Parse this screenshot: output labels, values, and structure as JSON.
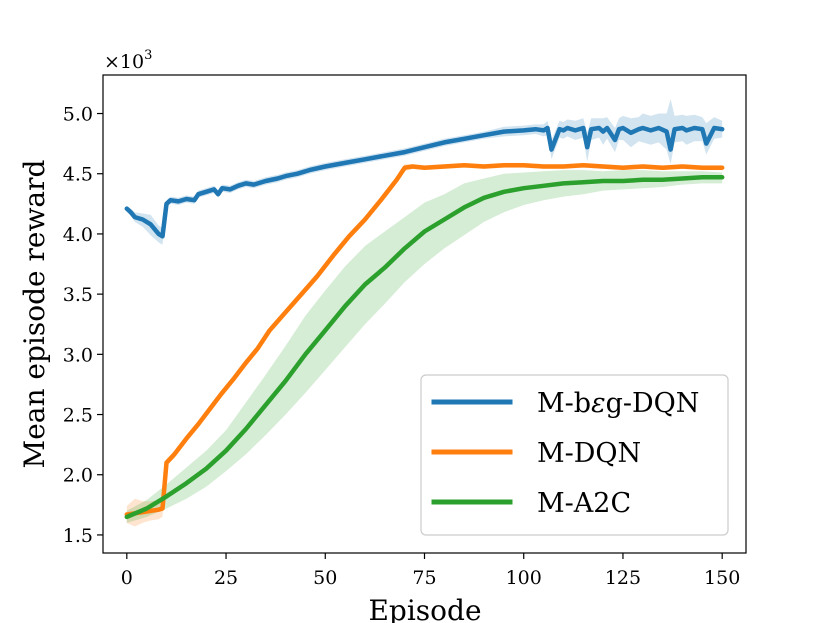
{
  "chart_data": {
    "type": "line",
    "xlabel": "Episode",
    "ylabel": "Mean episode reward",
    "y_multiplier": "×10",
    "y_multiplier_exp": "3",
    "xlim": [
      -6,
      156
    ],
    "ylim": [
      1.35,
      5.32
    ],
    "xticks": [
      0,
      25,
      50,
      75,
      100,
      125,
      150
    ],
    "xtick_labels": [
      "0",
      "25",
      "50",
      "75",
      "100",
      "125",
      "150"
    ],
    "yticks": [
      1.5,
      2.0,
      2.5,
      3.0,
      3.5,
      4.0,
      4.5,
      5.0
    ],
    "ytick_labels": [
      "1.5",
      "2.0",
      "2.5",
      "3.0",
      "3.5",
      "4.0",
      "4.5",
      "5.0"
    ],
    "legend_position": "lower-right",
    "series": [
      {
        "name": "M-bεg-DQN",
        "label_prefix": "M-b",
        "label_symbol": "ε",
        "label_suffix": "g-DQN",
        "color": "#1f77b4",
        "band_color": "#1f77b4",
        "band_opacity": 0.2,
        "x": [
          0,
          1,
          2,
          4,
          6,
          8,
          9,
          10,
          11,
          13,
          15,
          17,
          18,
          20,
          22,
          23,
          24,
          26,
          28,
          30,
          32,
          35,
          38,
          40,
          43,
          46,
          50,
          55,
          60,
          65,
          70,
          75,
          80,
          85,
          90,
          95,
          100,
          103,
          105,
          106,
          107,
          109,
          110,
          111,
          113,
          115,
          116,
          117,
          119,
          120,
          121,
          123,
          124,
          125,
          127,
          129,
          130,
          132,
          134,
          136,
          137,
          138,
          140,
          141,
          143,
          145,
          146,
          148,
          150
        ],
        "y": [
          4.21,
          4.18,
          4.14,
          4.12,
          4.08,
          4.0,
          3.98,
          4.25,
          4.28,
          4.27,
          4.29,
          4.28,
          4.33,
          4.35,
          4.37,
          4.33,
          4.38,
          4.37,
          4.4,
          4.42,
          4.41,
          4.44,
          4.46,
          4.48,
          4.5,
          4.53,
          4.56,
          4.59,
          4.62,
          4.65,
          4.68,
          4.72,
          4.76,
          4.79,
          4.82,
          4.85,
          4.86,
          4.87,
          4.86,
          4.88,
          4.7,
          4.87,
          4.86,
          4.88,
          4.86,
          4.88,
          4.72,
          4.87,
          4.88,
          4.85,
          4.88,
          4.78,
          4.87,
          4.88,
          4.84,
          4.87,
          4.88,
          4.86,
          4.88,
          4.85,
          4.7,
          4.87,
          4.88,
          4.86,
          4.88,
          4.87,
          4.75,
          4.88,
          4.87
        ],
        "lower": [
          4.19,
          4.15,
          4.1,
          4.06,
          3.99,
          3.93,
          3.91,
          4.22,
          4.25,
          4.24,
          4.26,
          4.25,
          4.3,
          4.32,
          4.34,
          4.3,
          4.35,
          4.34,
          4.37,
          4.39,
          4.38,
          4.41,
          4.43,
          4.45,
          4.47,
          4.5,
          4.53,
          4.56,
          4.59,
          4.62,
          4.65,
          4.69,
          4.73,
          4.76,
          4.79,
          4.81,
          4.82,
          4.83,
          4.81,
          4.82,
          4.62,
          4.8,
          4.79,
          4.81,
          4.78,
          4.8,
          4.6,
          4.78,
          4.8,
          4.74,
          4.79,
          4.68,
          4.78,
          4.78,
          4.72,
          4.77,
          4.76,
          4.74,
          4.76,
          4.7,
          4.58,
          4.76,
          4.77,
          4.74,
          4.77,
          4.77,
          4.66,
          4.79,
          4.8
        ],
        "upper": [
          4.23,
          4.21,
          4.18,
          4.17,
          4.16,
          4.07,
          4.05,
          4.28,
          4.31,
          4.3,
          4.32,
          4.31,
          4.36,
          4.38,
          4.4,
          4.36,
          4.41,
          4.4,
          4.43,
          4.45,
          4.44,
          4.47,
          4.49,
          4.51,
          4.53,
          4.56,
          4.59,
          4.62,
          4.65,
          4.68,
          4.71,
          4.75,
          4.79,
          4.82,
          4.85,
          4.89,
          4.9,
          4.91,
          4.91,
          4.94,
          4.78,
          4.94,
          4.93,
          4.95,
          4.94,
          4.96,
          4.84,
          4.96,
          4.96,
          4.96,
          4.97,
          4.88,
          4.96,
          4.98,
          4.96,
          4.97,
          5.0,
          4.98,
          5.0,
          5.0,
          5.12,
          4.98,
          4.99,
          4.98,
          4.99,
          4.97,
          4.92,
          4.97,
          4.94
        ]
      },
      {
        "name": "M-DQN",
        "color": "#ff7f0e",
        "band_color": "#ff7f0e",
        "band_opacity": 0.2,
        "x": [
          0,
          2,
          4,
          6,
          8,
          9,
          10,
          12,
          15,
          18,
          21,
          24,
          27,
          30,
          33,
          36,
          40,
          44,
          48,
          52,
          56,
          60,
          64,
          68,
          70,
          72,
          75,
          80,
          85,
          90,
          95,
          100,
          105,
          110,
          115,
          120,
          125,
          130,
          135,
          140,
          145,
          150
        ],
        "y": [
          1.67,
          1.68,
          1.69,
          1.7,
          1.71,
          1.72,
          2.1,
          2.17,
          2.3,
          2.42,
          2.55,
          2.68,
          2.8,
          2.93,
          3.05,
          3.2,
          3.35,
          3.5,
          3.65,
          3.82,
          3.98,
          4.12,
          4.28,
          4.45,
          4.55,
          4.56,
          4.55,
          4.56,
          4.57,
          4.56,
          4.57,
          4.57,
          4.56,
          4.56,
          4.57,
          4.56,
          4.55,
          4.56,
          4.55,
          4.56,
          4.55,
          4.55
        ],
        "lower": [
          1.6,
          1.57,
          1.6,
          1.62,
          1.63,
          1.65,
          2.07,
          2.14,
          2.27,
          2.39,
          2.52,
          2.65,
          2.77,
          2.9,
          3.02,
          3.17,
          3.32,
          3.47,
          3.62,
          3.79,
          3.95,
          4.09,
          4.25,
          4.42,
          4.52,
          4.54,
          4.53,
          4.54,
          4.55,
          4.54,
          4.55,
          4.55,
          4.54,
          4.54,
          4.55,
          4.54,
          4.53,
          4.54,
          4.53,
          4.54,
          4.53,
          4.53
        ],
        "upper": [
          1.74,
          1.8,
          1.78,
          1.78,
          1.79,
          1.79,
          2.13,
          2.2,
          2.33,
          2.45,
          2.58,
          2.71,
          2.83,
          2.96,
          3.08,
          3.23,
          3.38,
          3.53,
          3.68,
          3.85,
          4.01,
          4.15,
          4.31,
          4.48,
          4.58,
          4.58,
          4.57,
          4.58,
          4.59,
          4.58,
          4.59,
          4.59,
          4.58,
          4.58,
          4.59,
          4.58,
          4.57,
          4.58,
          4.57,
          4.58,
          4.57,
          4.57
        ]
      },
      {
        "name": "M-A2C",
        "color": "#2ca02c",
        "band_color": "#2ca02c",
        "band_opacity": 0.2,
        "x": [
          0,
          5,
          10,
          15,
          20,
          25,
          30,
          35,
          40,
          45,
          50,
          55,
          60,
          65,
          70,
          75,
          80,
          85,
          90,
          95,
          100,
          105,
          110,
          115,
          120,
          125,
          130,
          135,
          140,
          145,
          150
        ],
        "y": [
          1.65,
          1.72,
          1.82,
          1.93,
          2.05,
          2.2,
          2.38,
          2.58,
          2.78,
          3.0,
          3.2,
          3.4,
          3.58,
          3.72,
          3.88,
          4.02,
          4.12,
          4.22,
          4.3,
          4.35,
          4.38,
          4.4,
          4.42,
          4.43,
          4.44,
          4.44,
          4.45,
          4.45,
          4.46,
          4.47,
          4.47
        ],
        "lower": [
          1.6,
          1.65,
          1.72,
          1.8,
          1.9,
          2.03,
          2.17,
          2.33,
          2.5,
          2.68,
          2.87,
          3.06,
          3.25,
          3.42,
          3.6,
          3.75,
          3.88,
          3.99,
          4.1,
          4.18,
          4.24,
          4.28,
          4.31,
          4.33,
          4.36,
          4.37,
          4.38,
          4.39,
          4.41,
          4.42,
          4.42
        ],
        "upper": [
          1.7,
          1.79,
          1.92,
          2.06,
          2.2,
          2.37,
          2.6,
          2.83,
          3.07,
          3.32,
          3.53,
          3.73,
          3.9,
          4.02,
          4.14,
          4.26,
          4.33,
          4.42,
          4.46,
          4.5,
          4.51,
          4.52,
          4.53,
          4.53,
          4.52,
          4.53,
          4.53,
          4.52,
          4.52,
          4.52,
          4.51
        ]
      }
    ]
  }
}
